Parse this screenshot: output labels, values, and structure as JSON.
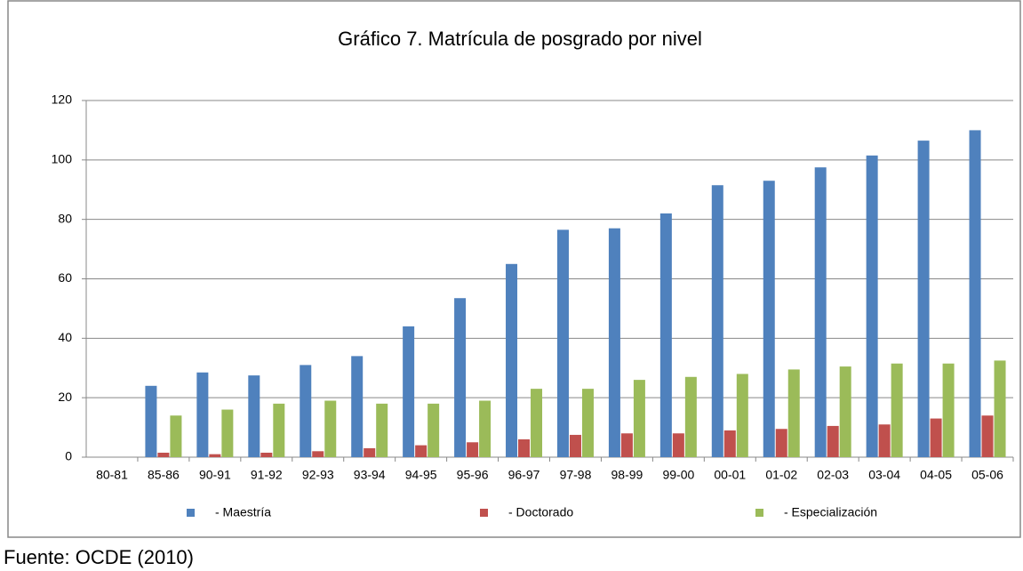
{
  "chart_data": {
    "type": "bar",
    "title": "Gráfico 7. Matrícula de posgrado por nivel",
    "categories": [
      "80-81",
      "85-86",
      "90-91",
      "91-92",
      "92-93",
      "93-94",
      "94-95",
      "95-96",
      "96-97",
      "97-98",
      "98-99",
      "99-00",
      "00-01",
      "01-02",
      "02-03",
      "03-04",
      "04-05",
      "05-06"
    ],
    "series": [
      {
        "name": "- Maestría",
        "color": "#4f81bd",
        "values": [
          0,
          24,
          28.5,
          27.5,
          31,
          34,
          44,
          53.5,
          65,
          76.5,
          77,
          82,
          91.5,
          93,
          97.5,
          101.5,
          106.5,
          110
        ]
      },
      {
        "name": "- Doctorado",
        "color": "#c0504d",
        "values": [
          0,
          1.5,
          1,
          1.5,
          2,
          3,
          4,
          5,
          6,
          7.5,
          8,
          8,
          9,
          9.5,
          10.5,
          11,
          13,
          14
        ]
      },
      {
        "name": "- Especialización",
        "color": "#9bbb59",
        "values": [
          0,
          14,
          16,
          18,
          19,
          18,
          18,
          19,
          23,
          23,
          26,
          27,
          28,
          29.5,
          30.5,
          31.5,
          31.5,
          32.5
        ]
      }
    ],
    "ylim": [
      0,
      120
    ],
    "yticks": [
      0,
      20,
      40,
      60,
      80,
      100,
      120
    ],
    "grid": true,
    "legend": "bottom",
    "source": "Fuente: OCDE (2010)"
  }
}
